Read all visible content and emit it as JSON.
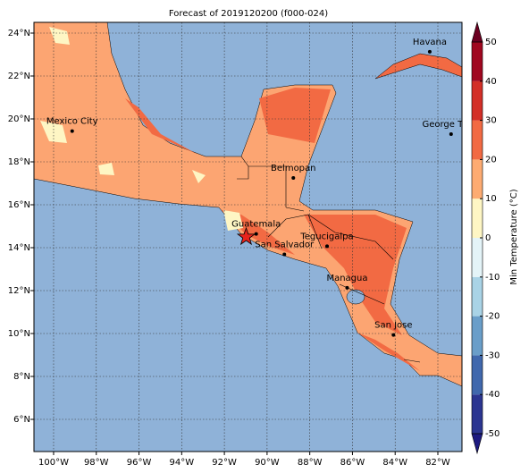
{
  "map": {
    "title": "Forecast of 2019120200 (f000-024)",
    "lonlim": [
      -100.92,
      -80.87
    ],
    "latlim": [
      4.5,
      24.5
    ],
    "lonticks": [
      {
        "value": -100,
        "label": "100°W"
      },
      {
        "value": -98,
        "label": "98°W"
      },
      {
        "value": -96,
        "label": "96°W"
      },
      {
        "value": -94,
        "label": "94°W"
      },
      {
        "value": -92,
        "label": "92°W"
      },
      {
        "value": -90,
        "label": "90°W"
      },
      {
        "value": -88,
        "label": "88°W"
      },
      {
        "value": -86,
        "label": "86°W"
      },
      {
        "value": -84,
        "label": "84°W"
      },
      {
        "value": -82,
        "label": "82°W"
      }
    ],
    "latticks": [
      {
        "value": 6,
        "label": "6°N"
      },
      {
        "value": 8,
        "label": "8°N"
      },
      {
        "value": 10,
        "label": "10°N"
      },
      {
        "value": 12,
        "label": "12°N"
      },
      {
        "value": 14,
        "label": "14°N"
      },
      {
        "value": 16,
        "label": "16°N"
      },
      {
        "value": 18,
        "label": "18°N"
      },
      {
        "value": 20,
        "label": "20°N"
      },
      {
        "value": 22,
        "label": "22°N"
      },
      {
        "value": 24,
        "label": "24°N"
      }
    ],
    "grid": true,
    "cities": [
      {
        "name": "Mexico City",
        "lon": -99.13,
        "lat": 19.43
      },
      {
        "name": "Havana",
        "lon": -82.38,
        "lat": 23.13
      },
      {
        "name": "George Town",
        "lon": -81.38,
        "lat": 19.29
      },
      {
        "name": "Belmopan",
        "lon": -88.77,
        "lat": 17.25
      },
      {
        "name": "Guatemala",
        "lon": -90.51,
        "lat": 14.64
      },
      {
        "name": "San Salvador",
        "lon": -89.19,
        "lat": 13.69
      },
      {
        "name": "Tegucigalpa",
        "lon": -87.19,
        "lat": 14.07
      },
      {
        "name": "Managua",
        "lon": -86.25,
        "lat": 12.13
      },
      {
        "name": "San Jose",
        "lon": -84.08,
        "lat": 9.93
      }
    ],
    "star": {
      "lon": -90.98,
      "lat": 14.5,
      "color": "#e8231c"
    },
    "colorbar": {
      "label": "Min Temperature (°C)",
      "lim": [
        -50,
        50
      ],
      "ticks": [
        -50,
        -40,
        -30,
        -20,
        -10,
        0,
        10,
        20,
        30,
        40,
        50
      ],
      "colors": [
        "#2b3591",
        "#4068ad",
        "#6a9ec9",
        "#a9d3e6",
        "#e4f4f8",
        "#fef6c4",
        "#fdab72",
        "#f26a43",
        "#d32f27",
        "#a0071f"
      ],
      "under_color": "#1d1a80",
      "over_color": "#6b0020"
    }
  }
}
